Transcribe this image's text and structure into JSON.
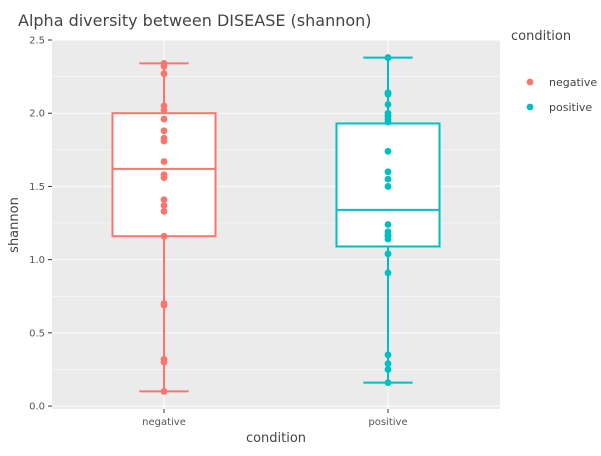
{
  "chart_data": {
    "type": "box",
    "title": "Alpha diversity between DISEASE (shannon)",
    "xlabel": "condition",
    "ylabel": "shannon",
    "ylim": [
      -0.02,
      2.5
    ],
    "yticks": [
      0.0,
      0.5,
      1.0,
      1.5,
      2.0,
      2.5
    ],
    "ytick_labels": [
      "0.0",
      "0.5",
      "1.0",
      "1.5",
      "2.0",
      "2.5"
    ],
    "categories": [
      "negative",
      "positive"
    ],
    "legend": {
      "title": "condition",
      "position": "right",
      "entries": [
        "negative",
        "positive"
      ]
    },
    "colors": {
      "negative": "#F8766D",
      "positive": "#00BFC4",
      "panel": "#EBEBEB",
      "grid": "#FFFFFF"
    },
    "series": [
      {
        "name": "negative",
        "box": {
          "lower_whisker": 0.1,
          "q1": 1.16,
          "median": 1.62,
          "q3": 2.0,
          "upper_whisker": 2.34
        },
        "points": [
          2.34,
          2.32,
          2.27,
          2.05,
          2.02,
          1.96,
          1.88,
          1.83,
          1.81,
          1.67,
          1.58,
          1.56,
          1.41,
          1.37,
          1.33,
          1.16,
          0.7,
          0.69,
          0.32,
          0.3,
          0.1
        ]
      },
      {
        "name": "positive",
        "box": {
          "lower_whisker": 0.16,
          "q1": 1.09,
          "median": 1.34,
          "q3": 1.93,
          "upper_whisker": 2.38
        },
        "points": [
          2.38,
          2.14,
          2.13,
          2.06,
          2.0,
          1.98,
          1.96,
          1.94,
          1.74,
          1.6,
          1.55,
          1.5,
          1.24,
          1.19,
          1.17,
          1.16,
          1.14,
          1.04,
          0.91,
          0.35,
          0.29,
          0.25,
          0.16
        ]
      }
    ]
  }
}
